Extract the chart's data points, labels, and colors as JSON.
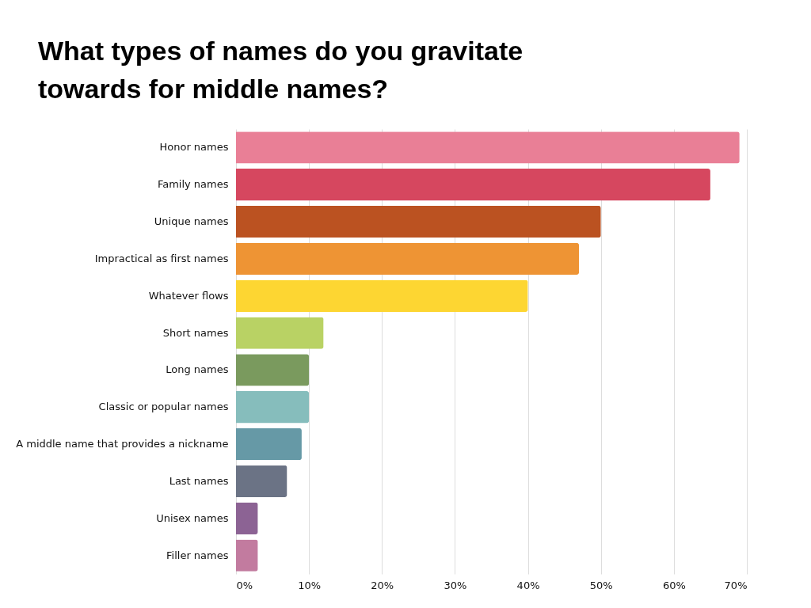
{
  "chart_data": {
    "type": "bar",
    "orientation": "horizontal",
    "title": "What types of names do you gravitate towards for middle names?",
    "categories": [
      "Honor names",
      "Family names",
      "Unique names",
      "Impractical as first names",
      "Whatever flows",
      "Short names",
      "Long names",
      "Classic or popular names",
      "A middle name that provides a nickname",
      "Last names",
      "Unisex names",
      "Filler names"
    ],
    "values": [
      69,
      65,
      50,
      47,
      40,
      12,
      10,
      10,
      9,
      7,
      3,
      3
    ],
    "colors": [
      "#e97f96",
      "#d6475f",
      "#bb5221",
      "#ee9434",
      "#fdd632",
      "#b9d264",
      "#7a9a5e",
      "#86bdbc",
      "#6699a6",
      "#6b7385",
      "#8c6394",
      "#c27b9f"
    ],
    "xlim": [
      0,
      70
    ],
    "xticks": [
      {
        "value": 0,
        "label": "0%"
      },
      {
        "value": 10,
        "label": "10%"
      },
      {
        "value": 20,
        "label": "20%"
      },
      {
        "value": 30,
        "label": "30%"
      },
      {
        "value": 40,
        "label": "40%"
      },
      {
        "value": 50,
        "label": "50%"
      },
      {
        "value": 60,
        "label": "60%"
      },
      {
        "value": 70,
        "label": "70%"
      }
    ],
    "grid": "x",
    "legend": false
  }
}
